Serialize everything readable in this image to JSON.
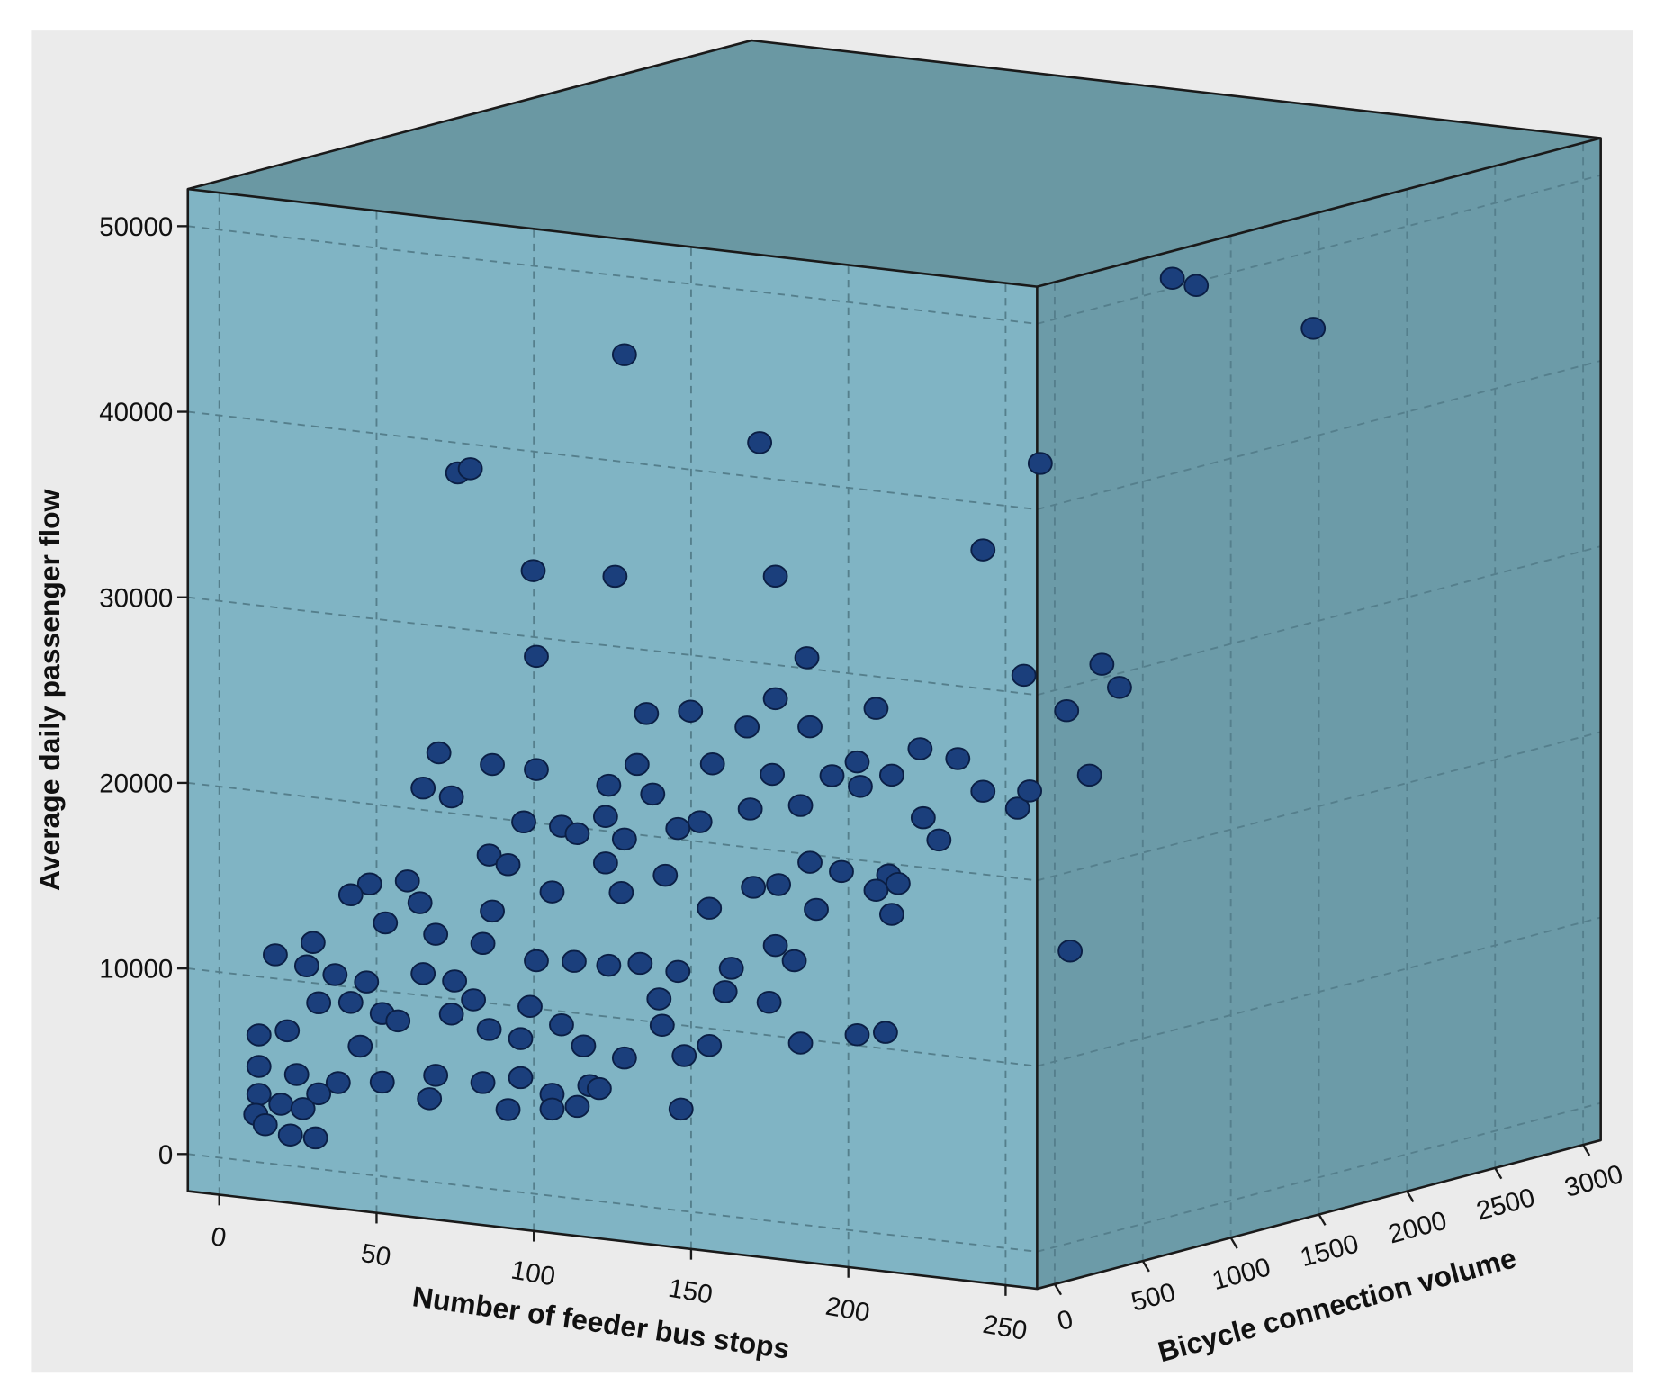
{
  "chart_data": {
    "type": "scatter3d",
    "xlabel": "Number of feeder bus stops",
    "ylabel": "Bicycle connection volume",
    "zlabel": "Average daily passenger flow",
    "color": "#1b3f7c",
    "grid": true,
    "xlim": [
      -10,
      260
    ],
    "ylim": [
      -100,
      3100
    ],
    "zlim": [
      -2000,
      52000
    ],
    "xticks": [
      0,
      50,
      100,
      150,
      200,
      250
    ],
    "yticks": [
      0,
      500,
      1000,
      1500,
      2000,
      2500,
      3000
    ],
    "zticks": [
      0,
      10000,
      20000,
      30000,
      40000,
      50000
    ],
    "x": [
      112,
      155,
      59,
      63,
      226,
      83,
      109,
      160,
      84,
      170,
      239,
      133,
      119,
      160,
      192,
      151,
      171,
      206,
      218,
      53,
      70,
      84,
      116,
      140,
      186,
      159,
      197,
      178,
      48,
      57,
      107,
      121,
      226,
      187,
      168,
      237,
      152,
      80,
      92,
      136,
      97,
      207,
      212,
      106,
      112,
      129,
      69,
      75,
      106,
      125,
      171,
      181,
      196,
      31,
      43,
      25,
      89,
      111,
      161,
      153,
      192,
      199,
      36,
      47,
      70,
      139,
      173,
      197,
      52,
      13,
      1,
      67,
      84,
      96,
      107,
      117,
      129,
      146,
      160,
      166,
      11,
      20,
      30,
      48,
      58,
      123,
      144,
      158,
      64,
      7,
      16,
      26,
      25,
      35,
      40,
      57,
      82,
      92,
      28,
      69,
      79,
      99,
      124,
      168,
      186,
      195,
      112,
      131,
      139,
      7,
      19,
      21,
      35,
      52,
      67,
      79,
      101,
      7,
      14,
      26,
      50,
      89,
      104,
      6,
      21,
      75,
      97,
      130,
      9,
      17,
      25,
      89,
      247,
      249,
      247,
      247,
      247,
      247,
      247,
      247,
      247,
      247
    ],
    "y": [
      200,
      200,
      200,
      200,
      200,
      200,
      200,
      200,
      200,
      200,
      200,
      200,
      200,
      200,
      200,
      200,
      200,
      200,
      200,
      200,
      200,
      200,
      200,
      200,
      200,
      200,
      200,
      200,
      200,
      200,
      200,
      200,
      200,
      200,
      200,
      200,
      200,
      200,
      200,
      200,
      200,
      200,
      200,
      200,
      200,
      200,
      200,
      200,
      200,
      200,
      200,
      200,
      200,
      200,
      200,
      200,
      200,
      200,
      200,
      200,
      200,
      200,
      200,
      200,
      200,
      200,
      200,
      200,
      200,
      200,
      200,
      200,
      200,
      200,
      200,
      200,
      200,
      200,
      200,
      200,
      200,
      200,
      200,
      200,
      200,
      200,
      200,
      200,
      200,
      0,
      0,
      0,
      200,
      200,
      200,
      200,
      200,
      200,
      200,
      200,
      200,
      200,
      200,
      200,
      200,
      200,
      200,
      200,
      200,
      0,
      0,
      200,
      200,
      200,
      200,
      200,
      200,
      0,
      0,
      0,
      200,
      200,
      200,
      0,
      0,
      200,
      200,
      200,
      0,
      0,
      0,
      200,
      900,
      1000,
      1700,
      150,
      500,
      600,
      300,
      430,
      320,
      90
    ],
    "z": [
      44700,
      40800,
      37300,
      37600,
      36400,
      32500,
      32700,
      33700,
      27900,
      29500,
      29900,
      25900,
      25500,
      27100,
      27200,
      25400,
      25800,
      25300,
      25000,
      22100,
      21800,
      21800,
      22700,
      23200,
      24200,
      23000,
      23700,
      23300,
      20100,
      19800,
      21400,
      21200,
      23400,
      22900,
      21500,
      22700,
      21000,
      18900,
      18900,
      20000,
      18600,
      21600,
      20500,
      19700,
      18600,
      19500,
      16900,
      16500,
      17200,
      16900,
      18500,
      18200,
      18300,
      14600,
      15000,
      13900,
      15300,
      15700,
      17100,
      16800,
      17400,
      17900,
      12600,
      13900,
      13900,
      15400,
      16000,
      16200,
      12300,
      11100,
      10200,
      12100,
      11500,
      11700,
      11700,
      12000,
      11800,
      12300,
      13800,
      13100,
      9800,
      9500,
      9300,
      10100,
      9900,
      10200,
      11000,
      10700,
      9000,
      6500,
      6900,
      8600,
      8100,
      7700,
      7400,
      8100,
      9000,
      8200,
      5800,
      7500,
      7200,
      7200,
      8800,
      8700,
      9500,
      9800,
      6800,
      7300,
      8000,
      4800,
      4600,
      3700,
      4000,
      4700,
      4600,
      5100,
      5100,
      3300,
      2900,
      3700,
      3400,
      4400,
      5000,
      2200,
      2800,
      3300,
      3900,
      4400,
      1700,
      1300,
      1300,
      3600,
      49700,
      49100,
      45000,
      41600,
      29900,
      28400,
      27900,
      24100,
      14900,
      24100
    ]
  }
}
